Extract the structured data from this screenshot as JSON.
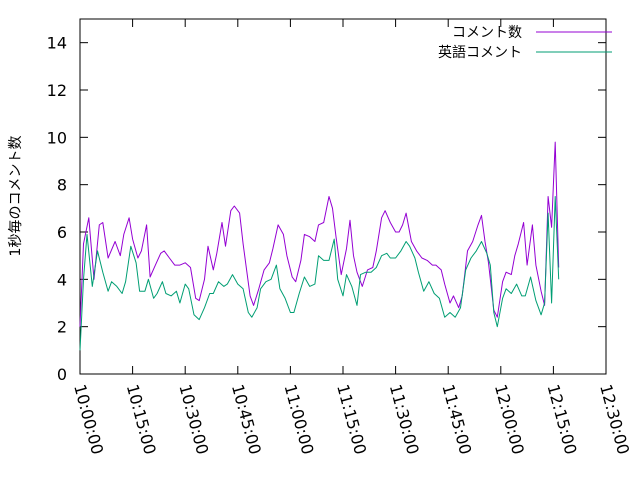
{
  "chart_data": {
    "type": "line",
    "ylabel": "1秒毎のコメント数",
    "xlabel": "",
    "title": "",
    "ylim": [
      0,
      15
    ],
    "y_ticks": [
      0,
      2,
      4,
      6,
      8,
      10,
      12,
      14
    ],
    "x_range": [
      "10:00:00",
      "12:30:00"
    ],
    "x_ticks": [
      "10:00:00",
      "10:15:00",
      "10:30:00",
      "10:45:00",
      "11:00:00",
      "11:15:00",
      "11:30:00",
      "11:45:00",
      "12:00:00",
      "12:15:00",
      "12:30:00"
    ],
    "grid": false,
    "legend_position": "top-right",
    "series": [
      {
        "name": "コメント数",
        "color": "#9400d3",
        "points": [
          [
            "10:00:00",
            2.0
          ],
          [
            "10:01:00",
            5.5
          ],
          [
            "10:02:30",
            6.6
          ],
          [
            "10:04:00",
            4.0
          ],
          [
            "10:05:30",
            6.3
          ],
          [
            "10:06:30",
            6.4
          ],
          [
            "10:08:00",
            4.9
          ],
          [
            "10:10:00",
            5.6
          ],
          [
            "10:11:30",
            5.0
          ],
          [
            "10:12:30",
            5.9
          ],
          [
            "10:14:00",
            6.6
          ],
          [
            "10:15:00",
            5.7
          ],
          [
            "10:16:30",
            4.9
          ],
          [
            "10:17:30",
            5.2
          ],
          [
            "10:19:00",
            6.3
          ],
          [
            "10:20:00",
            4.1
          ],
          [
            "10:21:30",
            4.6
          ],
          [
            "10:23:00",
            5.1
          ],
          [
            "10:24:00",
            5.2
          ],
          [
            "10:25:30",
            4.9
          ],
          [
            "10:27:00",
            4.6
          ],
          [
            "10:28:30",
            4.6
          ],
          [
            "10:30:00",
            4.7
          ],
          [
            "10:31:30",
            4.5
          ],
          [
            "10:33:00",
            3.2
          ],
          [
            "10:34:00",
            3.1
          ],
          [
            "10:35:30",
            4.0
          ],
          [
            "10:36:30",
            5.4
          ],
          [
            "10:38:00",
            4.4
          ],
          [
            "10:39:00",
            5.1
          ],
          [
            "10:40:30",
            6.4
          ],
          [
            "10:41:30",
            5.4
          ],
          [
            "10:43:00",
            6.9
          ],
          [
            "10:44:00",
            7.1
          ],
          [
            "10:45:30",
            6.8
          ],
          [
            "10:46:30",
            5.5
          ],
          [
            "10:47:30",
            4.4
          ],
          [
            "10:48:30",
            3.3
          ],
          [
            "10:49:30",
            2.9
          ],
          [
            "10:51:00",
            3.6
          ],
          [
            "10:52:30",
            4.4
          ],
          [
            "10:54:00",
            4.7
          ],
          [
            "10:55:00",
            5.3
          ],
          [
            "10:56:30",
            6.3
          ],
          [
            "10:58:00",
            5.9
          ],
          [
            "10:59:00",
            5.0
          ],
          [
            "11:00:30",
            4.1
          ],
          [
            "11:01:30",
            3.9
          ],
          [
            "11:03:00",
            4.8
          ],
          [
            "11:04:00",
            5.9
          ],
          [
            "11:05:30",
            5.8
          ],
          [
            "11:07:00",
            5.6
          ],
          [
            "11:08:00",
            6.3
          ],
          [
            "11:09:30",
            6.4
          ],
          [
            "11:11:00",
            7.5
          ],
          [
            "11:12:00",
            7.0
          ],
          [
            "11:13:00",
            5.8
          ],
          [
            "11:14:30",
            4.2
          ],
          [
            "11:16:00",
            5.3
          ],
          [
            "11:17:00",
            6.5
          ],
          [
            "11:18:00",
            5.0
          ],
          [
            "11:19:00",
            4.3
          ],
          [
            "11:20:30",
            3.7
          ],
          [
            "11:22:00",
            4.4
          ],
          [
            "11:23:30",
            4.5
          ],
          [
            "11:24:30",
            5.2
          ],
          [
            "11:26:00",
            6.6
          ],
          [
            "11:27:00",
            6.9
          ],
          [
            "11:28:30",
            6.4
          ],
          [
            "11:30:00",
            6.0
          ],
          [
            "11:31:00",
            6.0
          ],
          [
            "11:32:00",
            6.3
          ],
          [
            "11:33:00",
            6.8
          ],
          [
            "11:34:30",
            5.6
          ],
          [
            "11:36:00",
            5.2
          ],
          [
            "11:37:30",
            4.9
          ],
          [
            "11:39:00",
            4.8
          ],
          [
            "11:40:30",
            4.6
          ],
          [
            "11:41:30",
            4.6
          ],
          [
            "11:43:00",
            4.4
          ],
          [
            "11:44:00",
            3.8
          ],
          [
            "11:45:30",
            3.0
          ],
          [
            "11:46:30",
            3.3
          ],
          [
            "11:48:00",
            2.8
          ],
          [
            "11:49:00",
            3.3
          ],
          [
            "11:50:30",
            5.2
          ],
          [
            "11:52:00",
            5.6
          ],
          [
            "11:53:30",
            6.3
          ],
          [
            "11:54:30",
            6.7
          ],
          [
            "11:55:30",
            5.6
          ],
          [
            "11:56:30",
            4.7
          ],
          [
            "11:58:00",
            2.7
          ],
          [
            "11:59:00",
            2.4
          ],
          [
            "12:00:30",
            3.9
          ],
          [
            "12:01:30",
            4.3
          ],
          [
            "12:03:00",
            4.2
          ],
          [
            "12:04:00",
            5.0
          ],
          [
            "12:05:00",
            5.5
          ],
          [
            "12:06:30",
            6.4
          ],
          [
            "12:07:30",
            4.6
          ],
          [
            "12:09:00",
            6.3
          ],
          [
            "12:10:00",
            4.6
          ],
          [
            "12:11:30",
            3.5
          ],
          [
            "12:12:30",
            2.9
          ],
          [
            "12:13:30",
            7.5
          ],
          [
            "12:14:30",
            6.2
          ],
          [
            "12:15:30",
            9.8
          ],
          [
            "12:16:30",
            4.5
          ]
        ]
      },
      {
        "name": "英語コメント",
        "color": "#009e73",
        "points": [
          [
            "10:00:00",
            1.0
          ],
          [
            "10:01:00",
            4.0
          ],
          [
            "10:02:00",
            5.9
          ],
          [
            "10:03:30",
            3.7
          ],
          [
            "10:05:00",
            5.2
          ],
          [
            "10:06:30",
            4.3
          ],
          [
            "10:08:00",
            3.5
          ],
          [
            "10:09:00",
            3.9
          ],
          [
            "10:10:30",
            3.7
          ],
          [
            "10:12:00",
            3.4
          ],
          [
            "10:13:00",
            3.9
          ],
          [
            "10:14:30",
            5.4
          ],
          [
            "10:16:00",
            4.7
          ],
          [
            "10:17:00",
            3.5
          ],
          [
            "10:18:30",
            3.5
          ],
          [
            "10:19:30",
            4.0
          ],
          [
            "10:21:00",
            3.2
          ],
          [
            "10:22:00",
            3.4
          ],
          [
            "10:23:30",
            3.9
          ],
          [
            "10:24:30",
            3.4
          ],
          [
            "10:26:00",
            3.3
          ],
          [
            "10:27:30",
            3.5
          ],
          [
            "10:28:30",
            3.0
          ],
          [
            "10:30:00",
            3.8
          ],
          [
            "10:31:00",
            3.6
          ],
          [
            "10:32:30",
            2.5
          ],
          [
            "10:34:00",
            2.3
          ],
          [
            "10:35:30",
            2.8
          ],
          [
            "10:37:00",
            3.4
          ],
          [
            "10:38:00",
            3.4
          ],
          [
            "10:39:30",
            3.9
          ],
          [
            "10:41:00",
            3.7
          ],
          [
            "10:42:00",
            3.8
          ],
          [
            "10:43:30",
            4.2
          ],
          [
            "10:45:00",
            3.8
          ],
          [
            "10:46:30",
            3.6
          ],
          [
            "10:48:00",
            2.6
          ],
          [
            "10:49:00",
            2.4
          ],
          [
            "10:50:30",
            2.8
          ],
          [
            "10:51:30",
            3.6
          ],
          [
            "10:53:00",
            3.9
          ],
          [
            "10:54:30",
            4.0
          ],
          [
            "10:56:00",
            4.6
          ],
          [
            "10:57:00",
            3.6
          ],
          [
            "10:58:30",
            3.2
          ],
          [
            "11:00:00",
            2.6
          ],
          [
            "11:01:00",
            2.6
          ],
          [
            "11:02:30",
            3.4
          ],
          [
            "11:04:00",
            4.1
          ],
          [
            "11:05:30",
            3.7
          ],
          [
            "11:07:00",
            3.8
          ],
          [
            "11:08:00",
            5.0
          ],
          [
            "11:09:30",
            4.8
          ],
          [
            "11:11:00",
            4.8
          ],
          [
            "11:12:30",
            5.7
          ],
          [
            "11:13:30",
            4.0
          ],
          [
            "11:15:00",
            3.3
          ],
          [
            "11:16:00",
            4.2
          ],
          [
            "11:17:30",
            3.7
          ],
          [
            "11:19:00",
            2.9
          ],
          [
            "11:20:00",
            4.2
          ],
          [
            "11:21:30",
            4.3
          ],
          [
            "11:23:00",
            4.3
          ],
          [
            "11:24:30",
            4.5
          ],
          [
            "11:26:00",
            5.0
          ],
          [
            "11:27:30",
            5.1
          ],
          [
            "11:28:30",
            4.9
          ],
          [
            "11:30:00",
            4.9
          ],
          [
            "11:31:30",
            5.2
          ],
          [
            "11:33:00",
            5.6
          ],
          [
            "11:34:00",
            5.4
          ],
          [
            "11:35:30",
            4.9
          ],
          [
            "11:36:30",
            4.3
          ],
          [
            "11:38:00",
            3.5
          ],
          [
            "11:39:30",
            3.9
          ],
          [
            "11:41:00",
            3.4
          ],
          [
            "11:42:30",
            3.2
          ],
          [
            "11:44:00",
            2.4
          ],
          [
            "11:45:30",
            2.6
          ],
          [
            "11:47:00",
            2.4
          ],
          [
            "11:48:30",
            2.8
          ],
          [
            "11:50:00",
            4.4
          ],
          [
            "11:51:30",
            4.9
          ],
          [
            "11:53:00",
            5.2
          ],
          [
            "11:54:30",
            5.6
          ],
          [
            "11:56:00",
            5.1
          ],
          [
            "11:57:00",
            4.6
          ],
          [
            "11:58:00",
            2.6
          ],
          [
            "11:59:00",
            2.0
          ],
          [
            "12:00:30",
            3.2
          ],
          [
            "12:01:30",
            3.6
          ],
          [
            "12:03:00",
            3.4
          ],
          [
            "12:04:30",
            3.8
          ],
          [
            "12:06:00",
            3.3
          ],
          [
            "12:07:00",
            3.3
          ],
          [
            "12:08:30",
            4.1
          ],
          [
            "12:10:00",
            3.1
          ],
          [
            "12:11:30",
            2.5
          ],
          [
            "12:12:30",
            3.0
          ],
          [
            "12:13:30",
            6.8
          ],
          [
            "12:14:30",
            3.0
          ],
          [
            "12:15:30",
            7.5
          ],
          [
            "12:16:30",
            4.0
          ]
        ]
      }
    ]
  }
}
